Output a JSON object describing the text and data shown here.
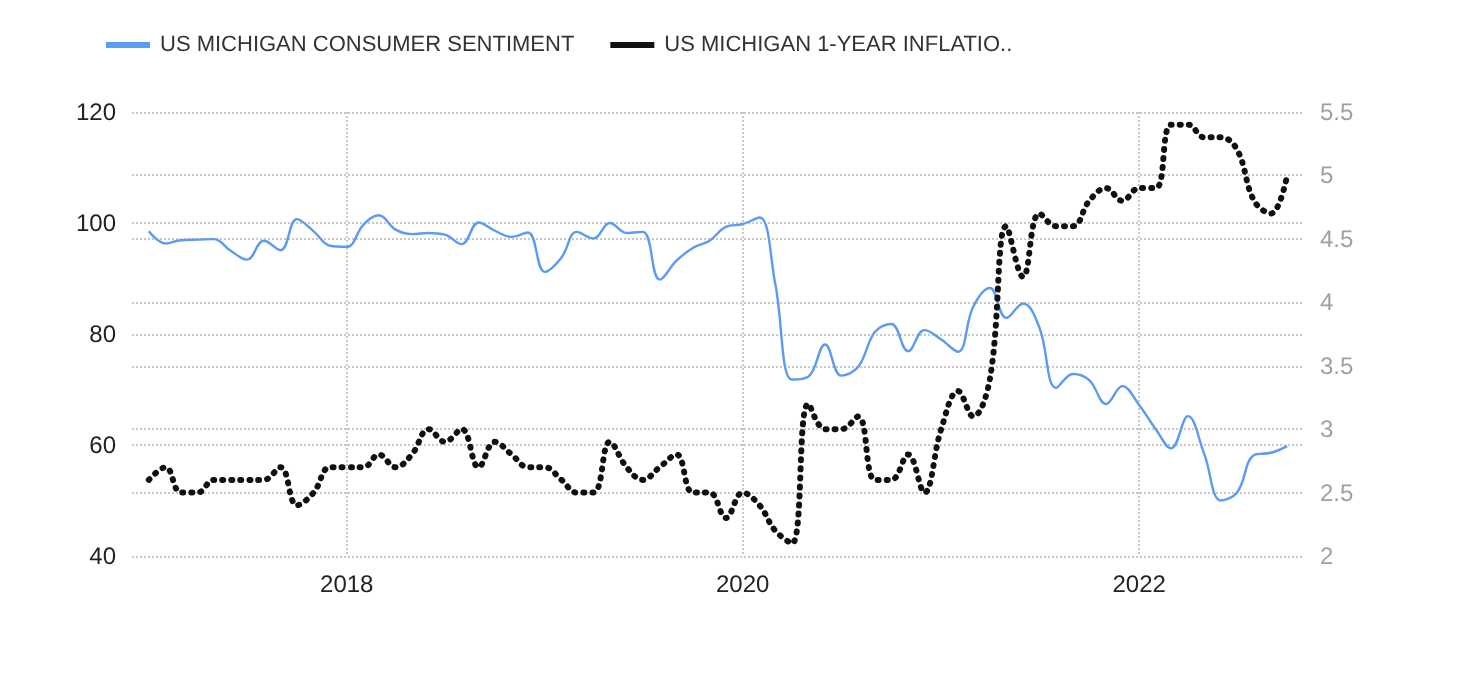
{
  "chart_data": {
    "type": "line",
    "x": [
      "2017-01",
      "2017-02",
      "2017-03",
      "2017-04",
      "2017-05",
      "2017-06",
      "2017-07",
      "2017-08",
      "2017-09",
      "2017-10",
      "2017-11",
      "2017-12",
      "2018-01",
      "2018-02",
      "2018-03",
      "2018-04",
      "2018-05",
      "2018-06",
      "2018-07",
      "2018-08",
      "2018-09",
      "2018-10",
      "2018-11",
      "2018-12",
      "2019-01",
      "2019-02",
      "2019-03",
      "2019-04",
      "2019-05",
      "2019-06",
      "2019-07",
      "2019-08",
      "2019-09",
      "2019-10",
      "2019-11",
      "2019-12",
      "2020-01",
      "2020-02",
      "2020-03",
      "2020-04",
      "2020-05",
      "2020-06",
      "2020-07",
      "2020-08",
      "2020-09",
      "2020-10",
      "2020-11",
      "2020-12",
      "2021-01",
      "2021-02",
      "2021-03",
      "2021-04",
      "2021-05",
      "2021-06",
      "2021-07",
      "2021-08",
      "2021-09",
      "2021-10",
      "2021-11",
      "2021-12",
      "2022-01",
      "2022-02",
      "2022-03",
      "2022-04",
      "2022-05",
      "2022-06",
      "2022-07",
      "2022-08",
      "2022-09",
      "2022-10"
    ],
    "series": [
      {
        "name": "US MICHIGAN CONSUMER SENTIMENT",
        "color": "#5b9bf0",
        "line_style": "solid",
        "values": [
          98.5,
          96.3,
          96.9,
          97.0,
          97.1,
          95.0,
          93.4,
          96.8,
          95.1,
          100.7,
          98.5,
          95.9,
          95.7,
          99.7,
          101.4,
          98.8,
          98.0,
          98.2,
          97.9,
          96.2,
          100.1,
          98.6,
          97.5,
          98.3,
          91.2,
          93.8,
          98.4,
          97.2,
          100.0,
          98.2,
          98.4,
          89.8,
          93.2,
          95.5,
          96.8,
          99.3,
          99.8,
          101.0,
          89.1,
          71.8,
          72.3,
          78.1,
          72.5,
          74.1,
          80.4,
          81.8,
          76.9,
          80.7,
          79.0,
          76.8,
          84.9,
          88.3,
          82.9,
          85.5,
          81.2,
          70.3,
          72.8,
          71.7,
          67.4,
          70.6,
          67.2,
          62.8,
          59.4,
          65.2,
          58.4,
          50.0,
          51.5,
          58.2,
          58.6,
          59.8
        ]
      },
      {
        "name": "US MICHIGAN 1-YEAR INFLATIO..",
        "color": "#111111",
        "line_style": "dotted",
        "axis": "y2",
        "values": [
          2.6,
          2.7,
          2.5,
          2.5,
          2.6,
          2.6,
          2.6,
          2.6,
          2.7,
          2.4,
          2.5,
          2.7,
          2.7,
          2.7,
          2.8,
          2.7,
          2.8,
          3.0,
          2.9,
          3.0,
          2.7,
          2.9,
          2.8,
          2.7,
          2.7,
          2.6,
          2.5,
          2.5,
          2.9,
          2.7,
          2.6,
          2.7,
          2.8,
          2.5,
          2.5,
          2.3,
          2.5,
          2.4,
          2.2,
          2.1,
          3.2,
          3.0,
          3.0,
          3.1,
          2.6,
          2.6,
          2.8,
          2.5,
          3.0,
          3.3,
          3.1,
          3.4,
          4.6,
          4.2,
          4.7,
          4.6,
          4.6,
          4.8,
          4.9,
          4.8,
          4.9,
          4.9,
          5.4,
          5.4,
          5.3,
          5.3,
          5.2,
          4.8,
          4.7,
          5.0
        ]
      }
    ],
    "xlim": [
      "2016-12",
      "2022-11"
    ],
    "xticks": [
      "2018",
      "2020",
      "2022"
    ],
    "ylim": [
      40,
      120
    ],
    "yticks": [
      40,
      60,
      80,
      100,
      120
    ],
    "y2lim": [
      2,
      5.5
    ],
    "y2ticks": [
      2,
      2.5,
      3,
      3.5,
      4,
      4.5,
      5,
      5.5
    ],
    "grid": true,
    "legend": "top left",
    "marker": "none"
  }
}
